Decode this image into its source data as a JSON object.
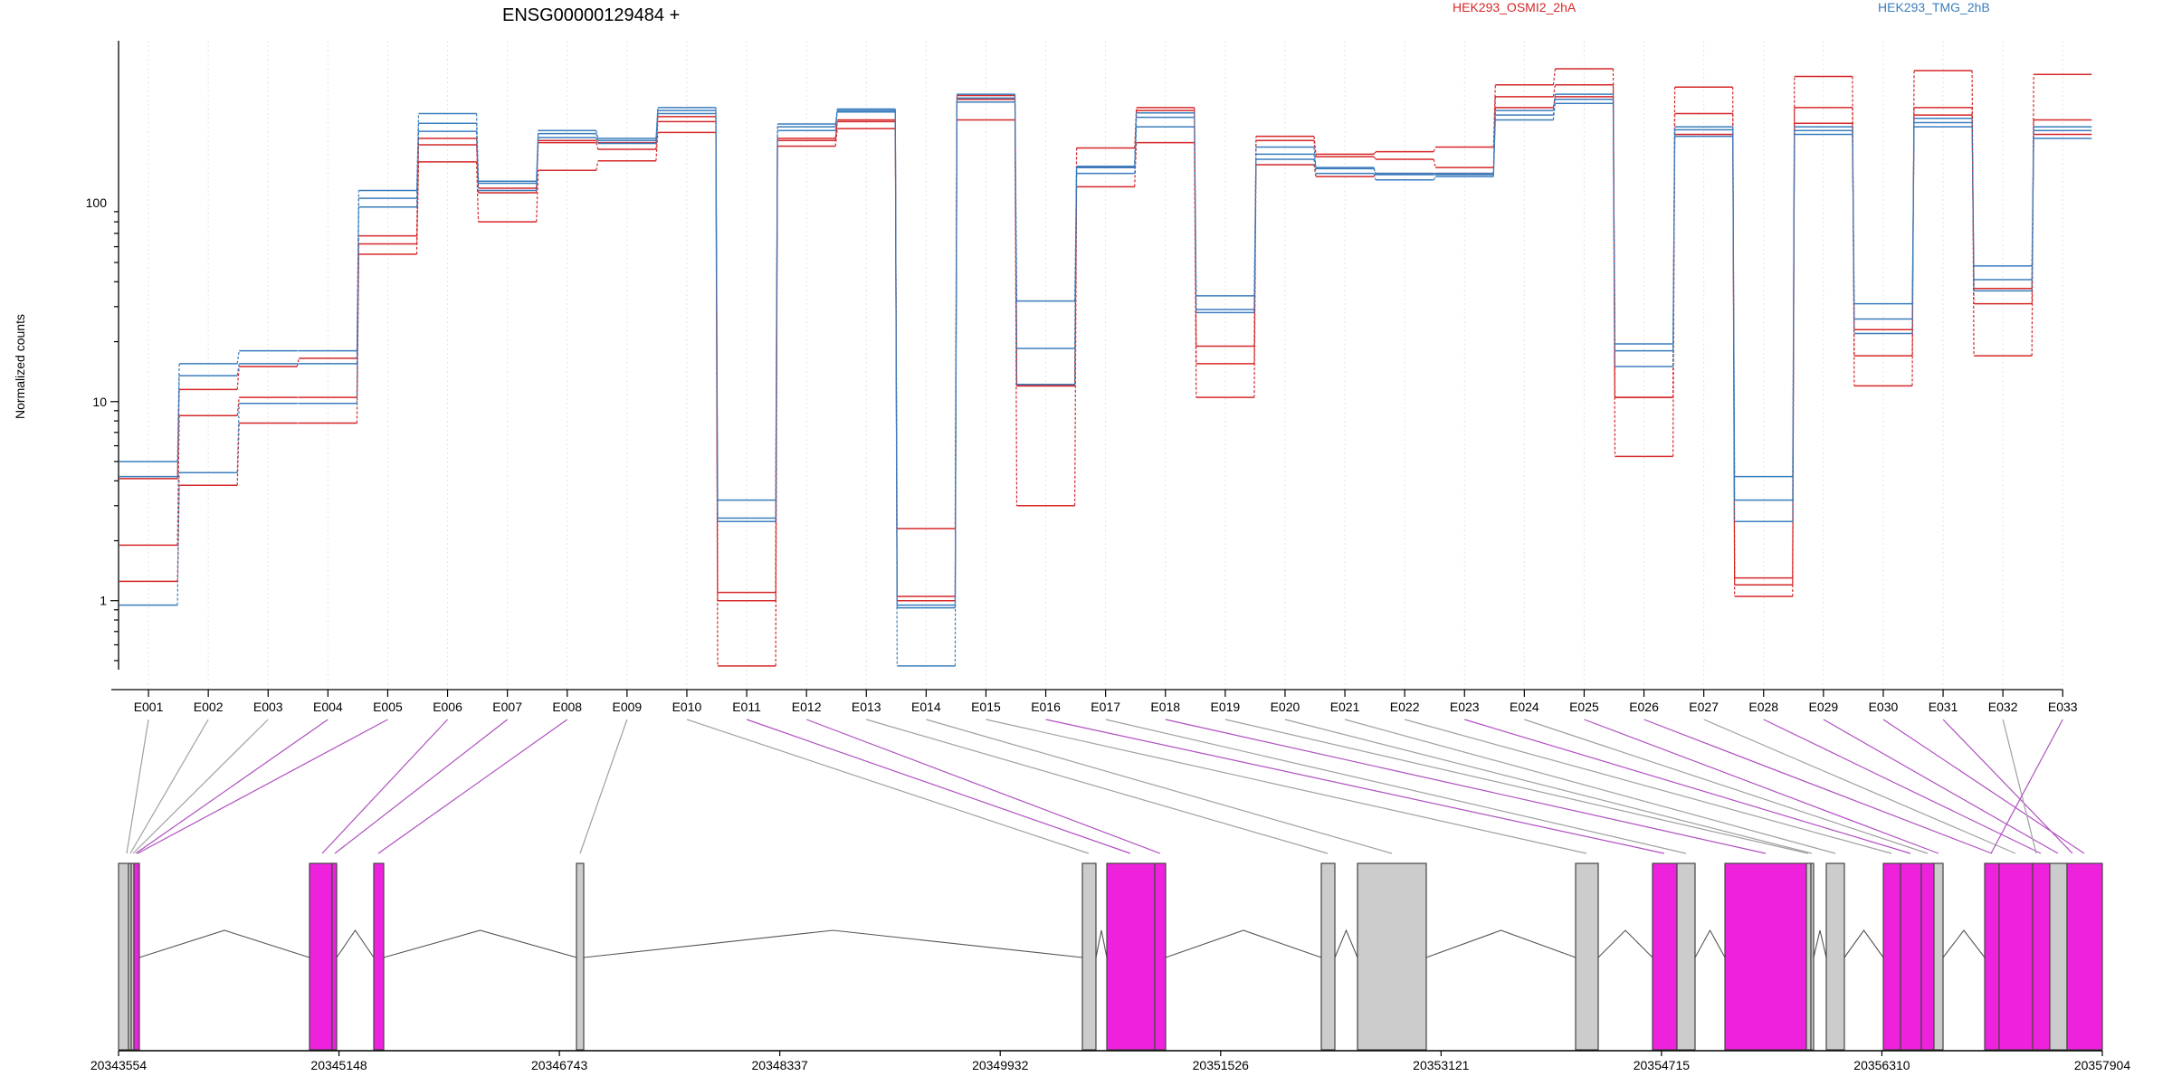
{
  "chart_data": {
    "type": "line",
    "title": "ENSG00000129484 +",
    "ylabel": "Normalized counts",
    "y_scale": "log",
    "ylim": [
      0.45,
      650
    ],
    "yticks": [
      1,
      10,
      100
    ],
    "ytick_labels": [
      "1",
      "10",
      "100"
    ],
    "legend": [
      {
        "name": "HEK293_OSMI2_2hA",
        "color": "#d62728"
      },
      {
        "name": "HEK293_TMG_2hB",
        "color": "#3a7dbd"
      }
    ],
    "categories": [
      "E001",
      "E002",
      "E003",
      "E004",
      "E005",
      "E006",
      "E007",
      "E008",
      "E009",
      "E010",
      "E011",
      "E012",
      "E013",
      "E014",
      "E015",
      "E016",
      "E017",
      "E018",
      "E019",
      "E020",
      "E021",
      "E022",
      "E023",
      "E024",
      "E025",
      "E026",
      "E027",
      "E028",
      "E029",
      "E030",
      "E031",
      "E032",
      "E033"
    ],
    "series": [
      {
        "color": "#d62728",
        "values": [
          4.1,
          11.5,
          15,
          16.5,
          68,
          210,
          118,
          205,
          200,
          270,
          1.1,
          210,
          260,
          2.3,
          345,
          12,
          188,
          300,
          19,
          215,
          175,
          180,
          190,
          390,
          470,
          10.5,
          380,
          1.3,
          430,
          12,
          460,
          17,
          440
        ]
      },
      {
        "color": "#d62728",
        "values": [
          1.9,
          8.5,
          10.5,
          10.5,
          62,
          195,
          112,
          200,
          185,
          255,
          1.0,
          205,
          255,
          1.05,
          330,
          12,
          150,
          290,
          15.5,
          205,
          170,
          165,
          150,
          340,
          390,
          5.3,
          280,
          1.2,
          300,
          17,
          300,
          31,
          260
        ]
      },
      {
        "color": "#d62728",
        "values": [
          1.25,
          3.8,
          7.8,
          7.8,
          55,
          160,
          80,
          145,
          162,
          225,
          0.47,
          192,
          235,
          1.0,
          260,
          3.0,
          120,
          200,
          10.5,
          155,
          135,
          140,
          140,
          300,
          340,
          10.5,
          220,
          1.05,
          250,
          23,
          275,
          37,
          220
        ]
      },
      {
        "color": "#3a7dbd",
        "values": [
          5.0,
          15.5,
          18,
          18,
          115,
          280,
          128,
          230,
          210,
          300,
          3.2,
          248,
          295,
          0.47,
          350,
          32,
          152,
          282,
          34,
          190,
          150,
          140,
          140,
          290,
          350,
          19.5,
          240,
          4.2,
          240,
          31,
          265,
          48,
          240
        ]
      },
      {
        "color": "#3a7dbd",
        "values": [
          4.2,
          13.5,
          15.5,
          15.5,
          105,
          250,
          125,
          222,
          205,
          290,
          2.6,
          240,
          290,
          0.95,
          335,
          18.5,
          150,
          268,
          29,
          175,
          148,
          138,
          138,
          275,
          330,
          18,
          232,
          3.2,
          230,
          26,
          252,
          41,
          230
        ]
      },
      {
        "color": "#3a7dbd",
        "values": [
          0.95,
          4.4,
          9.8,
          9.8,
          95,
          228,
          115,
          212,
          198,
          280,
          2.5,
          230,
          285,
          0.92,
          320,
          12.2,
          140,
          240,
          28,
          165,
          140,
          130,
          135,
          260,
          315,
          15,
          215,
          2.5,
          220,
          22,
          240,
          36,
          210
        ]
      }
    ],
    "genomic_axis": {
      "tick_labels": [
        "20343554",
        "20345148",
        "20346743",
        "20348337",
        "20349932",
        "20351526",
        "20353121",
        "20354715",
        "20356310",
        "20357904"
      ]
    }
  }
}
